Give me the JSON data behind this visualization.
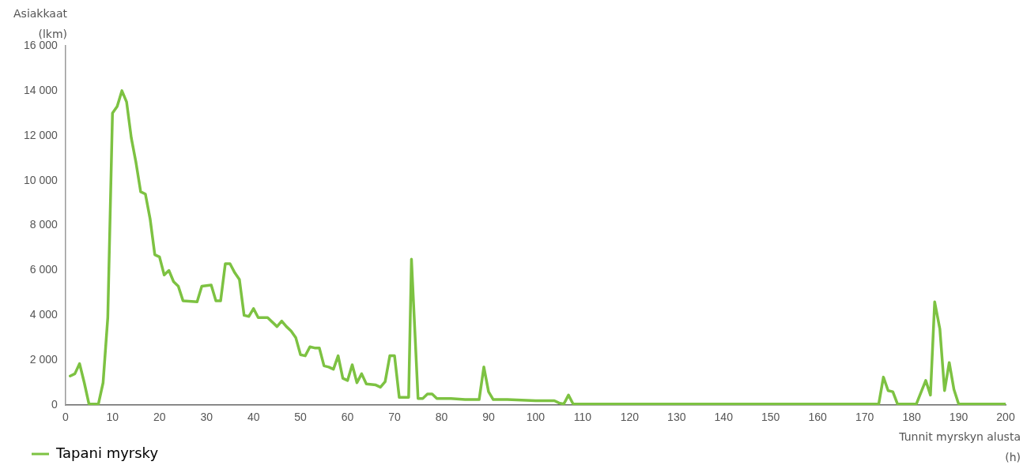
{
  "chart_data": {
    "type": "line",
    "xlabel": "Tunnit myrskyn alusta (h)",
    "ylabel": "Asiakkaat (lkm)",
    "xlim": [
      0,
      200
    ],
    "xticks": [
      0,
      10,
      20,
      30,
      40,
      50,
      60,
      70,
      80,
      90,
      100,
      110,
      120,
      130,
      140,
      150,
      160,
      170,
      180,
      190,
      200
    ],
    "ylim": [
      0,
      16000
    ],
    "yticks": [
      {
        "value": 0,
        "label": "0"
      },
      {
        "value": 2000,
        "label": "2 000"
      },
      {
        "value": 4000,
        "label": "4 000"
      },
      {
        "value": 6000,
        "label": "6 000"
      },
      {
        "value": 8000,
        "label": "8 000"
      },
      {
        "value": 10000,
        "label": "10 000"
      },
      {
        "value": 12000,
        "label": "12 000"
      },
      {
        "value": 14000,
        "label": "14 000"
      },
      {
        "value": 16000,
        "label": "16 000"
      }
    ],
    "grid": false,
    "legend": "bottom left",
    "marker": "none",
    "line_style": "solid",
    "series": [
      {
        "name": "Tapani myrsky",
        "color": "#7dc242",
        "x": [
          1,
          2,
          3,
          4,
          5,
          6,
          7,
          8,
          9,
          10,
          11,
          12,
          13,
          14,
          15,
          16,
          17,
          18,
          19,
          20,
          21,
          22,
          23,
          24,
          25,
          28,
          29,
          31,
          32,
          33,
          34,
          35,
          36,
          37,
          38,
          39,
          40,
          41,
          43,
          45,
          46,
          47,
          48,
          49,
          50,
          51,
          52,
          53,
          54,
          55,
          56,
          57,
          58,
          59,
          60,
          61,
          62,
          63,
          64,
          66,
          67,
          68,
          69,
          70,
          71,
          73,
          73.6,
          75,
          76,
          77,
          78,
          79,
          82,
          85,
          88,
          89,
          90,
          91,
          94,
          100,
          104,
          105,
          106,
          107,
          108,
          173,
          174,
          175,
          176,
          177,
          181,
          183,
          184,
          184.9,
          186,
          187,
          188,
          189,
          190,
          200
        ],
        "values": [
          1300,
          1400,
          1850,
          1000,
          50,
          50,
          50,
          1000,
          3900,
          13000,
          13300,
          14000,
          13500,
          11900,
          10800,
          9500,
          9400,
          8300,
          6700,
          6600,
          5800,
          6000,
          5500,
          5300,
          4650,
          4600,
          5300,
          5350,
          4650,
          4650,
          6300,
          6300,
          5900,
          5600,
          4000,
          3950,
          4300,
          3900,
          3900,
          3500,
          3750,
          3500,
          3300,
          3000,
          2250,
          2200,
          2600,
          2550,
          2550,
          1750,
          1700,
          1600,
          2200,
          1200,
          1100,
          1800,
          1000,
          1400,
          950,
          900,
          800,
          1050,
          2200,
          2200,
          350,
          350,
          6500,
          300,
          300,
          500,
          500,
          300,
          300,
          250,
          250,
          1700,
          600,
          250,
          250,
          200,
          200,
          100,
          50,
          450,
          50,
          50,
          1250,
          650,
          600,
          50,
          50,
          1100,
          450,
          4600,
          3400,
          650,
          1900,
          700,
          50,
          50
        ]
      }
    ]
  }
}
